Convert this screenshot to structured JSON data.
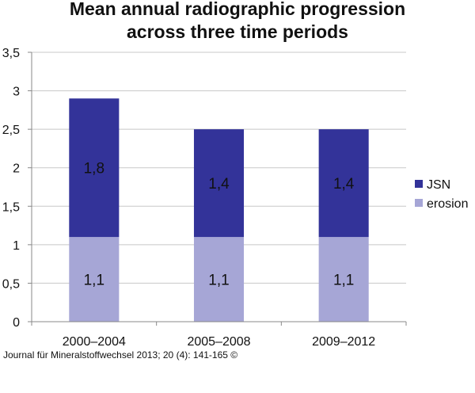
{
  "chart_data": {
    "type": "bar",
    "stacked": true,
    "title_lines": [
      "Mean annual radiographic progression",
      "across three time periods"
    ],
    "categories": [
      "2000–2004",
      "2005–2008",
      "2009–2012"
    ],
    "series": [
      {
        "name": "erosion",
        "values": [
          1.1,
          1.1,
          1.1
        ],
        "labels": [
          "1,1",
          "1,1",
          "1,1"
        ],
        "color": "#a6a6d6"
      },
      {
        "name": "JSN",
        "values": [
          1.8,
          1.4,
          1.4
        ],
        "labels": [
          "1,8",
          "1,4",
          "1,4"
        ],
        "color": "#333399"
      }
    ],
    "y_ticks": [
      0,
      0.5,
      1,
      1.5,
      2,
      2.5,
      3,
      3.5
    ],
    "y_tick_labels": [
      "0",
      "0,5",
      "1",
      "1,5",
      "2",
      "2,5",
      "3",
      "3,5"
    ],
    "ylim": [
      0,
      3.5
    ],
    "grid": true,
    "legend_position": "right",
    "legend_order": [
      "JSN",
      "erosion"
    ]
  },
  "source": "Journal für Mineralstoffwechsel 2013; 20 (4): 141-165 ©"
}
